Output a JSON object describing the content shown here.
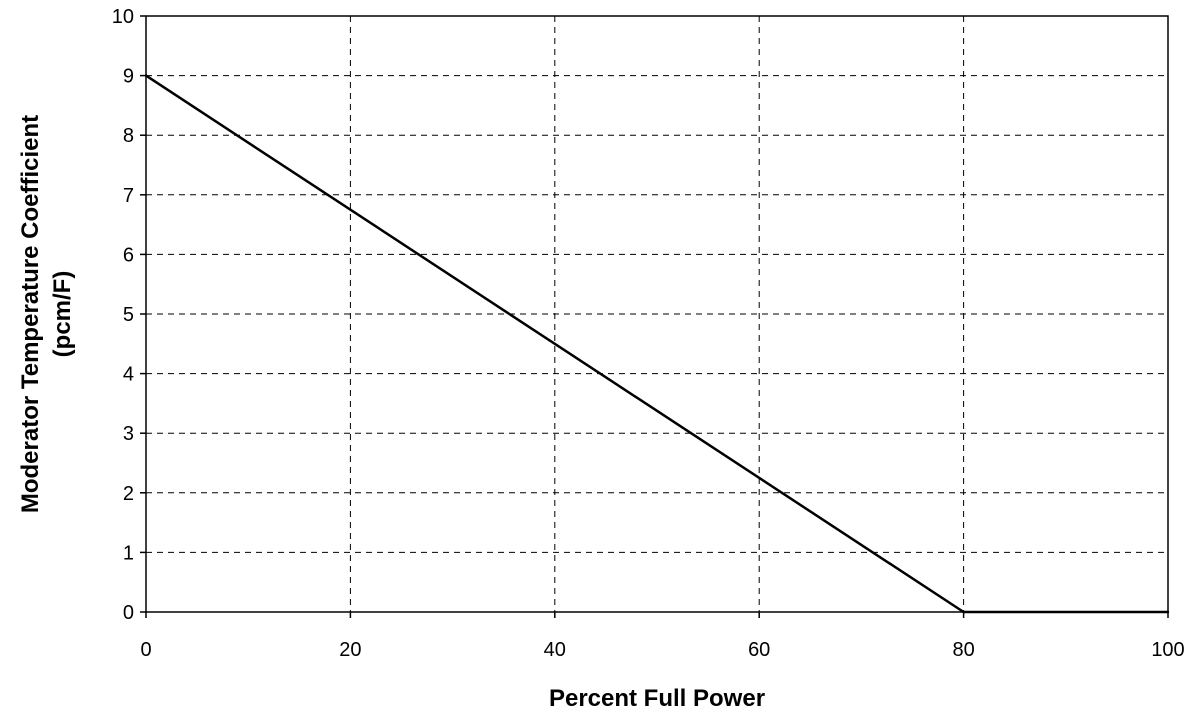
{
  "chart_data": {
    "type": "line",
    "title": "",
    "xlabel": "Percent Full Power",
    "ylabel_line1": "Moderator Temperature Coefficient",
    "ylabel_line2": "(pcm/F)",
    "xlim": [
      0,
      100
    ],
    "ylim": [
      0,
      10
    ],
    "xticks": [
      "0",
      "20",
      "40",
      "60",
      "80",
      "100"
    ],
    "yticks": [
      "0",
      "1",
      "2",
      "3",
      "4",
      "5",
      "6",
      "7",
      "8",
      "9",
      "10"
    ],
    "grid": "dashed",
    "legend": "none",
    "series": [
      {
        "x": [
          0,
          80,
          100
        ],
        "y": [
          9,
          0,
          0
        ],
        "color": "#000000"
      }
    ]
  }
}
